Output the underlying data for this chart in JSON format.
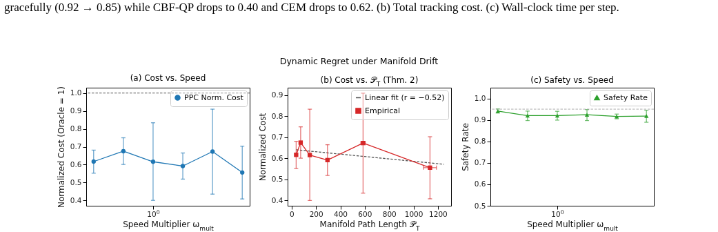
{
  "chart_data": [
    {
      "type": "line",
      "title": "(a) Cost vs. Speed",
      "xlabel": "Speed Multiplier ω$_{mult}$",
      "ylabel": "Normalized Cost (Oracle = 1)",
      "annotations": [
        "gracefully (0.92 → 0.85) while CBF-QP drops to 0.40 and CEM drops to 0.62. (b) Total tracking cost. (c) Wall-clock time per step.",
        "Dynamic Regret under Manifold Drift"
      ],
      "categories": [
        null,
        null,
        "10$^{0}$",
        null,
        null,
        null
      ],
      "marker": "circle",
      "legend": "top right",
      "grid": false,
      "series": [
        {
          "name": "PPC Norm. Cost",
          "color": "#1f77b4",
          "values": [
            0.617,
            0.675,
            0.616,
            0.592,
            0.673,
            0.556
          ],
          "errors": [
            [
              0.552,
              0.681
            ],
            [
              0.601,
              0.75
            ],
            [
              0.4,
              0.834
            ],
            [
              0.519,
              0.665
            ],
            [
              0.435,
              0.91
            ],
            [
              0.408,
              0.703
            ]
          ]
        }
      ],
      "ylim": [
        0.37,
        1.03
      ],
      "yticks": [
        0.4,
        0.5,
        0.6,
        0.7,
        0.8,
        0.9,
        {
          "value": 1,
          "label": "1.0"
        }
      ],
      "ref_lines": [
        {
          "axis": "y",
          "value": 1,
          "color": "#333333",
          "line_style": "dashed"
        }
      ]
    },
    {
      "type": "line",
      "title": "(b) Cost vs. 𝒫$_{T}$ (Thm. 2)",
      "xlabel": "Manifold Path Length 𝒫$_{T}$",
      "ylabel": "Normalized Cost",
      "legend": "top right",
      "grid": false,
      "series": [
        {
          "name": "Linear fit (r = −0.52)",
          "type": "line",
          "color": "#555555",
          "line_style": "dashed",
          "marker": "none",
          "x": [
            37,
            1250
          ],
          "values": [
            0.641,
            0.572
          ]
        },
        {
          "name": "Empirical",
          "type": "line",
          "color": "#d62728",
          "marker": "square",
          "x": [
            37,
            74,
            149,
            294,
            586,
            1135
          ],
          "values": [
            0.617,
            0.675,
            0.616,
            0.592,
            0.673,
            0.556
          ],
          "errors": [
            [
              0.552,
              0.681
            ],
            [
              0.601,
              0.75
            ],
            [
              0.4,
              0.834
            ],
            [
              0.519,
              0.665
            ],
            [
              0.435,
              0.91
            ],
            [
              0.408,
              0.703
            ]
          ],
          "xerrors": [
            null,
            null,
            null,
            null,
            18,
            53
          ]
        }
      ],
      "xlim": [
        -33,
        1308
      ],
      "xticks": [
        0,
        200,
        400,
        600,
        800,
        1000,
        1200
      ],
      "ylim": [
        0.375,
        0.936
      ],
      "yticks": [
        0.4,
        0.5,
        0.6,
        0.7,
        0.8,
        0.9
      ]
    },
    {
      "type": "line",
      "title": "(c) Safety vs. Speed",
      "xlabel": "Speed Multiplier ω$_{mult}$",
      "ylabel": "Safety Rate",
      "categories": [
        null,
        null,
        "10$^{0}$",
        null,
        null,
        null
      ],
      "marker": "triangle",
      "legend": "top right",
      "grid": false,
      "series": [
        {
          "name": "Safety Rate",
          "color": "#2ca02c",
          "values": [
            0.941,
            0.92,
            0.92,
            0.924,
            0.916,
            0.918
          ],
          "errors": [
            [
              0.932,
              0.951
            ],
            [
              0.897,
              0.941
            ],
            [
              0.899,
              0.94
            ],
            [
              0.897,
              0.948
            ],
            [
              0.905,
              0.927
            ],
            [
              0.889,
              0.945
            ]
          ]
        }
      ],
      "ylim": [
        0.5,
        1.05
      ],
      "yticks": [
        0.5,
        0.6,
        0.7,
        0.8,
        0.9,
        {
          "value": 1,
          "label": "1.0"
        }
      ],
      "ref_lines": [
        {
          "axis": "y",
          "value": 0.95,
          "color": "#999999",
          "line_style": "dashed"
        }
      ]
    }
  ]
}
